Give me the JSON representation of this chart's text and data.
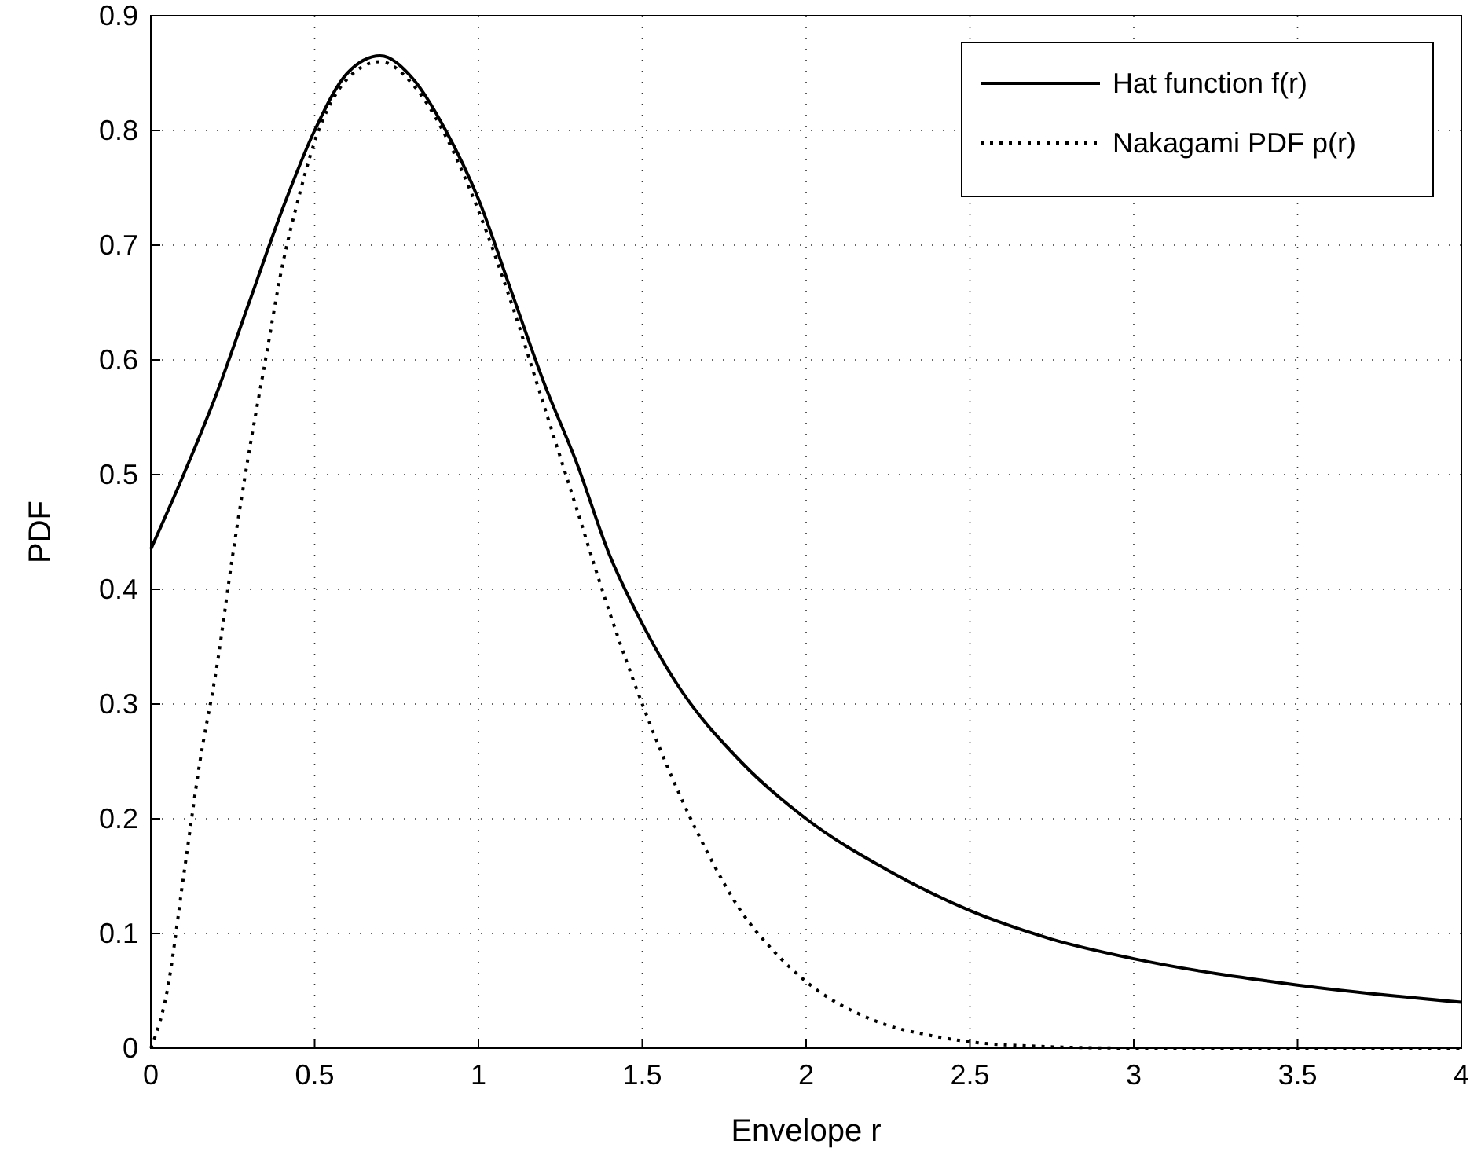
{
  "chart_data": {
    "type": "line",
    "xlabel": "Envelope r",
    "ylabel": "PDF",
    "xlim": [
      0,
      4
    ],
    "ylim": [
      0,
      0.9
    ],
    "xticks": [
      0,
      0.5,
      1,
      1.5,
      2,
      2.5,
      3,
      3.5,
      4
    ],
    "yticks": [
      0,
      0.1,
      0.2,
      0.3,
      0.4,
      0.5,
      0.6,
      0.7,
      0.8,
      0.9
    ],
    "grid": true,
    "legend": "top right",
    "series": [
      {
        "name": "Hat function f(r)",
        "color": "#000000",
        "line_style": "solid",
        "x": [
          0,
          0.1,
          0.2,
          0.3,
          0.4,
          0.5,
          0.6,
          0.7,
          0.8,
          0.9,
          1.0,
          1.1,
          1.2,
          1.3,
          1.4,
          1.5,
          1.6,
          1.8,
          2.0,
          2.25,
          2.5,
          2.75,
          3.0,
          3.5,
          4.0
        ],
        "values": [
          0.435,
          0.5,
          0.57,
          0.65,
          0.73,
          0.8,
          0.85,
          0.865,
          0.845,
          0.8,
          0.74,
          0.66,
          0.58,
          0.51,
          0.43,
          0.37,
          0.32,
          0.25,
          0.2,
          0.155,
          0.12,
          0.095,
          0.078,
          0.055,
          0.04
        ]
      },
      {
        "name": "Nakagami PDF p(r)",
        "color": "#000000",
        "line_style": "dotted",
        "x": [
          0,
          0.05,
          0.1,
          0.15,
          0.2,
          0.25,
          0.3,
          0.35,
          0.4,
          0.45,
          0.5,
          0.6,
          0.7,
          0.8,
          0.9,
          1.0,
          1.1,
          1.2,
          1.3,
          1.4,
          1.5,
          1.6,
          1.7,
          1.8,
          1.9,
          2.0,
          2.2,
          2.4,
          2.6,
          3.0,
          4.0
        ],
        "values": [
          0,
          0.05,
          0.15,
          0.25,
          0.33,
          0.43,
          0.52,
          0.6,
          0.68,
          0.74,
          0.79,
          0.845,
          0.86,
          0.84,
          0.795,
          0.73,
          0.65,
          0.56,
          0.47,
          0.38,
          0.3,
          0.23,
          0.17,
          0.12,
          0.085,
          0.058,
          0.025,
          0.01,
          0.003,
          0,
          0
        ]
      }
    ]
  }
}
